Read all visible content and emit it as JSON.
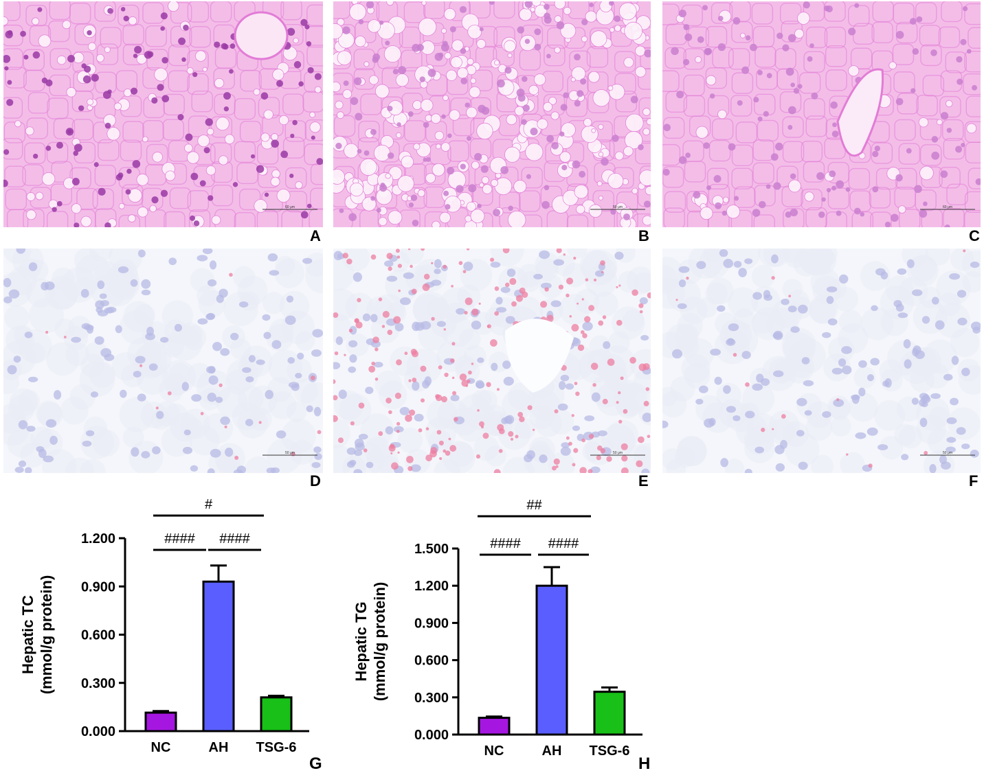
{
  "figure": {
    "panels": [
      {
        "label": "A",
        "stain": "he",
        "scale_text": "60 μm"
      },
      {
        "label": "B",
        "stain": "he",
        "scale_text": "50 μm"
      },
      {
        "label": "C",
        "stain": "he",
        "scale_text": "60 μm"
      },
      {
        "label": "D",
        "stain": "oil",
        "scale_text": "50 μm"
      },
      {
        "label": "E",
        "stain": "oil",
        "scale_text": "50 μm"
      },
      {
        "label": "F",
        "stain": "oil",
        "scale_text": "50 μm"
      }
    ],
    "colors": {
      "he_background": "#f3bde8",
      "he_membrane": "#e27cd6",
      "he_nucleus": "#9a3aa6",
      "oil_background": "#f4f6fb",
      "oil_nucleus": "#b7b9e4",
      "oil_lipid": "#ee7ea0"
    }
  },
  "chart_data": [
    {
      "panel_label": "G",
      "type": "bar",
      "categories": [
        "NC",
        "AH",
        "TSG-6"
      ],
      "values": [
        0.115,
        0.93,
        0.21
      ],
      "errors": [
        0.01,
        0.1,
        0.01
      ],
      "bar_colors": [
        "#a517e0",
        "#5a5eff",
        "#18c018"
      ],
      "ylabel_line1": "Hepatic TC",
      "ylabel_line2": "(mmol/g protein)",
      "ylim": [
        0,
        1.2
      ],
      "yticks": [
        "0.000",
        "0.300",
        "0.600",
        "0.900",
        "1.200"
      ],
      "significance": [
        {
          "text": "####",
          "from": "NC",
          "to": "AH"
        },
        {
          "text": "####",
          "from": "AH",
          "to": "TSG-6"
        },
        {
          "text": "#",
          "from": "NC",
          "to": "TSG-6"
        }
      ]
    },
    {
      "panel_label": "H",
      "type": "bar",
      "categories": [
        "NC",
        "AH",
        "TSG-6"
      ],
      "values": [
        0.135,
        1.2,
        0.345
      ],
      "errors": [
        0.01,
        0.15,
        0.035
      ],
      "bar_colors": [
        "#a517e0",
        "#5a5eff",
        "#18c018"
      ],
      "ylabel_line1": "Hepatic TG",
      "ylabel_line2": "(mmol/g protein)",
      "ylim": [
        0,
        1.5
      ],
      "yticks": [
        "0.000",
        "0.300",
        "0.600",
        "0.900",
        "1.200",
        "1.500"
      ],
      "significance": [
        {
          "text": "####",
          "from": "NC",
          "to": "AH"
        },
        {
          "text": "####",
          "from": "AH",
          "to": "TSG-6"
        },
        {
          "text": "##",
          "from": "NC",
          "to": "TSG-6"
        }
      ]
    }
  ]
}
